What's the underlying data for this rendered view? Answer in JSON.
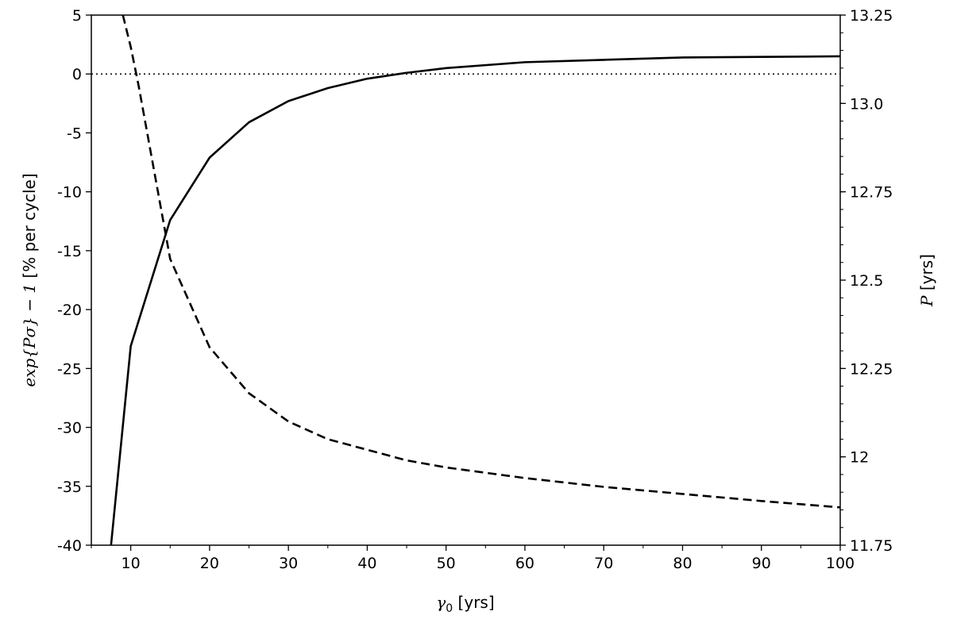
{
  "chart_data": {
    "type": "line",
    "x_axis": {
      "label_math": "γ",
      "label_sub": "0",
      "label_unit": " [yrs]",
      "range": [
        5,
        100
      ],
      "ticks": [
        10,
        20,
        30,
        40,
        50,
        60,
        70,
        80,
        90,
        100
      ],
      "tick_labels": [
        "10",
        "20",
        "30",
        "40",
        "50",
        "60",
        "70",
        "80",
        "90",
        "100"
      ],
      "minor_ticks": [
        5,
        15,
        25,
        35,
        45,
        55,
        65,
        75,
        85,
        95
      ]
    },
    "y_left": {
      "label_math": "exp{Pσ} − 1",
      "label_unit": " [% per cycle]",
      "range": [
        -40,
        5
      ],
      "ticks": [
        5,
        0,
        -5,
        -10,
        -15,
        -20,
        -25,
        -30,
        -35,
        -40
      ],
      "tick_labels": [
        "5",
        "0",
        "-5",
        "-10",
        "-15",
        "-20",
        "-25",
        "-30",
        "-35",
        "-40"
      ]
    },
    "y_right": {
      "label_math": "P",
      "label_unit": " [yrs]",
      "range": [
        11.75,
        13.25
      ],
      "ticks": [
        13.25,
        13.0,
        12.75,
        12.5,
        12.25,
        12.0,
        11.75
      ],
      "tick_labels": [
        "13.25",
        "13.0",
        "12.75",
        "12.5",
        "12.25",
        "12",
        "11.75"
      ],
      "minor_step": 0.05
    },
    "reference_line": {
      "axis": "left",
      "y": 0,
      "style": "dotted"
    },
    "series": [
      {
        "axis": "left",
        "style": "solid",
        "x": [
          7.5,
          10,
          15,
          20,
          25,
          30,
          35,
          40,
          45,
          50,
          60,
          70,
          80,
          90,
          100
        ],
        "y": [
          -40,
          -23.1,
          -12.4,
          -7.1,
          -4.1,
          -2.3,
          -1.2,
          -0.4,
          0.1,
          0.5,
          1.0,
          1.2,
          1.4,
          1.45,
          1.5
        ]
      },
      {
        "axis": "right",
        "style": "dashed",
        "x": [
          9,
          10,
          11,
          15,
          20,
          25,
          30,
          35,
          40,
          45,
          50,
          60,
          70,
          80,
          90,
          100
        ],
        "y": [
          13.25,
          13.16,
          13.05,
          12.56,
          12.31,
          12.18,
          12.1,
          12.05,
          12.02,
          11.99,
          11.97,
          11.94,
          11.915,
          11.895,
          11.875,
          11.857
        ]
      }
    ],
    "grid": false,
    "legend": "none",
    "colors": {
      "line": "#000000",
      "background": "#ffffff"
    }
  }
}
